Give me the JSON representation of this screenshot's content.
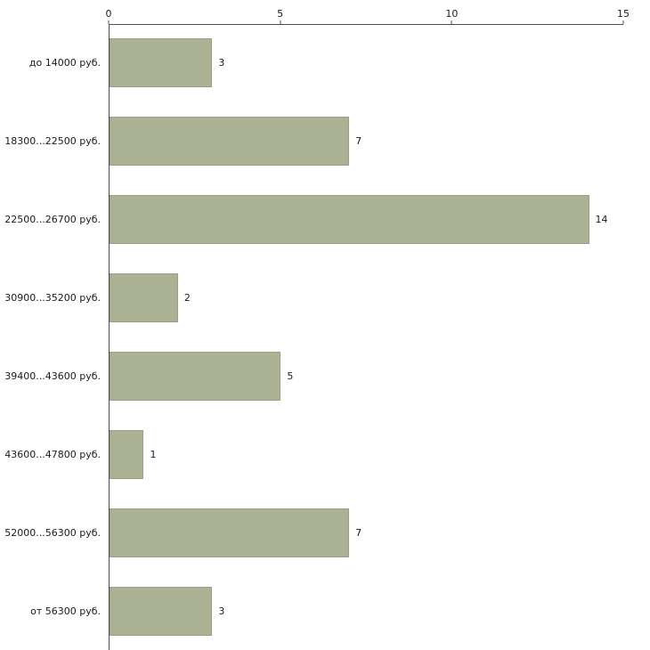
{
  "chart_data": {
    "type": "bar",
    "orientation": "horizontal",
    "title": "",
    "xlabel": "",
    "ylabel": "",
    "categories": [
      "до 14000 руб.",
      "18300...22500 руб.",
      "22500...26700 руб.",
      "30900...35200 руб.",
      "39400...43600 руб.",
      "43600...47800 руб.",
      "52000...56300 руб.",
      "от 56300 руб."
    ],
    "values": [
      3,
      7,
      14,
      2,
      5,
      1,
      7,
      3
    ],
    "xlim": [
      0,
      15
    ],
    "x_ticks": [
      0,
      5,
      10,
      15
    ],
    "x_tick_position": "top",
    "grid": false,
    "legend": false,
    "bar_color": "#abb293",
    "bar_border_color": "#9aa083",
    "axis_color": "#4d4d4d",
    "text_color": "#1a1a1a",
    "background_color": "#ffffff"
  }
}
